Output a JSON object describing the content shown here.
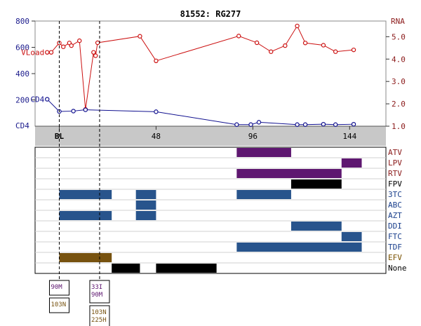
{
  "chart_data": [
    {
      "type": "line",
      "title": "81552: RG277",
      "x_ticks": [
        "BL",
        "48",
        "96",
        "144"
      ],
      "x_tick_weeks": [
        0,
        48,
        96,
        144
      ],
      "xlim": [
        -12,
        162
      ],
      "y_left": {
        "label": "CD4",
        "ticks": [
          "800",
          "600",
          "400",
          "200"
        ],
        "range": [
          0,
          800
        ]
      },
      "y_right": {
        "label": "RNA",
        "ticks": [
          "5.0",
          "4.0",
          "3.0",
          "2.0",
          "1.0"
        ],
        "range": [
          1.0,
          5.7
        ]
      },
      "grid": false,
      "series": [
        {
          "name": "VLoad",
          "axis": "right",
          "color": "#cc1111",
          "x": [
            -6,
            -4,
            0,
            2,
            5,
            6,
            10,
            13,
            17,
            18,
            19,
            40,
            48,
            89,
            98,
            105,
            112,
            118,
            122,
            131,
            137,
            146
          ],
          "y": [
            4.3,
            4.3,
            4.72,
            4.55,
            4.72,
            4.6,
            4.82,
            1.75,
            4.3,
            4.15,
            4.73,
            5.02,
            3.92,
            5.03,
            4.73,
            4.33,
            4.6,
            5.48,
            4.72,
            4.62,
            4.33,
            4.41
          ]
        },
        {
          "name": "CD4",
          "axis": "left",
          "color": "#11118f",
          "x": [
            -6,
            0,
            7,
            13,
            48,
            88,
            95,
            99,
            118,
            122,
            131,
            137,
            146
          ],
          "y": [
            205,
            112,
            115,
            125,
            110,
            12,
            12,
            30,
            12,
            12,
            15,
            12,
            15
          ]
        }
      ],
      "series_labels": [
        "VLoad",
        "CD4"
      ]
    },
    {
      "type": "gantt",
      "rows": [
        {
          "label": "ATV",
          "color": "#8b1111",
          "bars": [
            [
              88,
              115
            ]
          ]
        },
        {
          "label": "LPV",
          "color": "#8b1111",
          "bars": [
            [
              140,
              150
            ]
          ]
        },
        {
          "label": "RTV",
          "color": "#8b1111",
          "bars": [
            [
              88,
              140
            ]
          ]
        },
        {
          "label": "FPV",
          "color": "#000000",
          "bars": [
            [
              115,
              140
            ]
          ]
        },
        {
          "label": "3TC",
          "color": "#1f3fa0",
          "bars": [
            [
              0,
              26
            ],
            [
              38,
              48
            ],
            [
              88,
              115
            ]
          ]
        },
        {
          "label": "ABC",
          "color": "#1f3fa0",
          "bars": [
            [
              38,
              48
            ]
          ]
        },
        {
          "label": "AZT",
          "color": "#1f3fa0",
          "bars": [
            [
              0,
              26
            ],
            [
              38,
              48
            ]
          ]
        },
        {
          "label": "DDI",
          "color": "#1f3fa0",
          "bars": [
            [
              115,
              140
            ]
          ]
        },
        {
          "label": "FTC",
          "color": "#1f3fa0",
          "bars": [
            [
              140,
              150
            ]
          ]
        },
        {
          "label": "TDF",
          "color": "#1f3fa0",
          "bars": [
            [
              88,
              150
            ]
          ]
        },
        {
          "label": "EFV",
          "color": "#8b6508",
          "bars": [
            [
              0,
              26
            ]
          ]
        },
        {
          "label": "None",
          "color": "#000000",
          "bars": [
            [
              26,
              40
            ],
            [
              48,
              78
            ]
          ]
        }
      ]
    }
  ],
  "colors": {
    "drug_pi": "#5e1770",
    "drug_nrti": "#28548c",
    "drug_nnrti": "#77520f",
    "none": "#000000"
  },
  "mutation_boxes": [
    {
      "week": 0,
      "groups": [
        [
          "90M"
        ],
        [
          "103N"
        ]
      ]
    },
    {
      "week": 20,
      "groups": [
        [
          "33I",
          "90M"
        ],
        [
          "103N",
          "225H"
        ]
      ]
    }
  ]
}
